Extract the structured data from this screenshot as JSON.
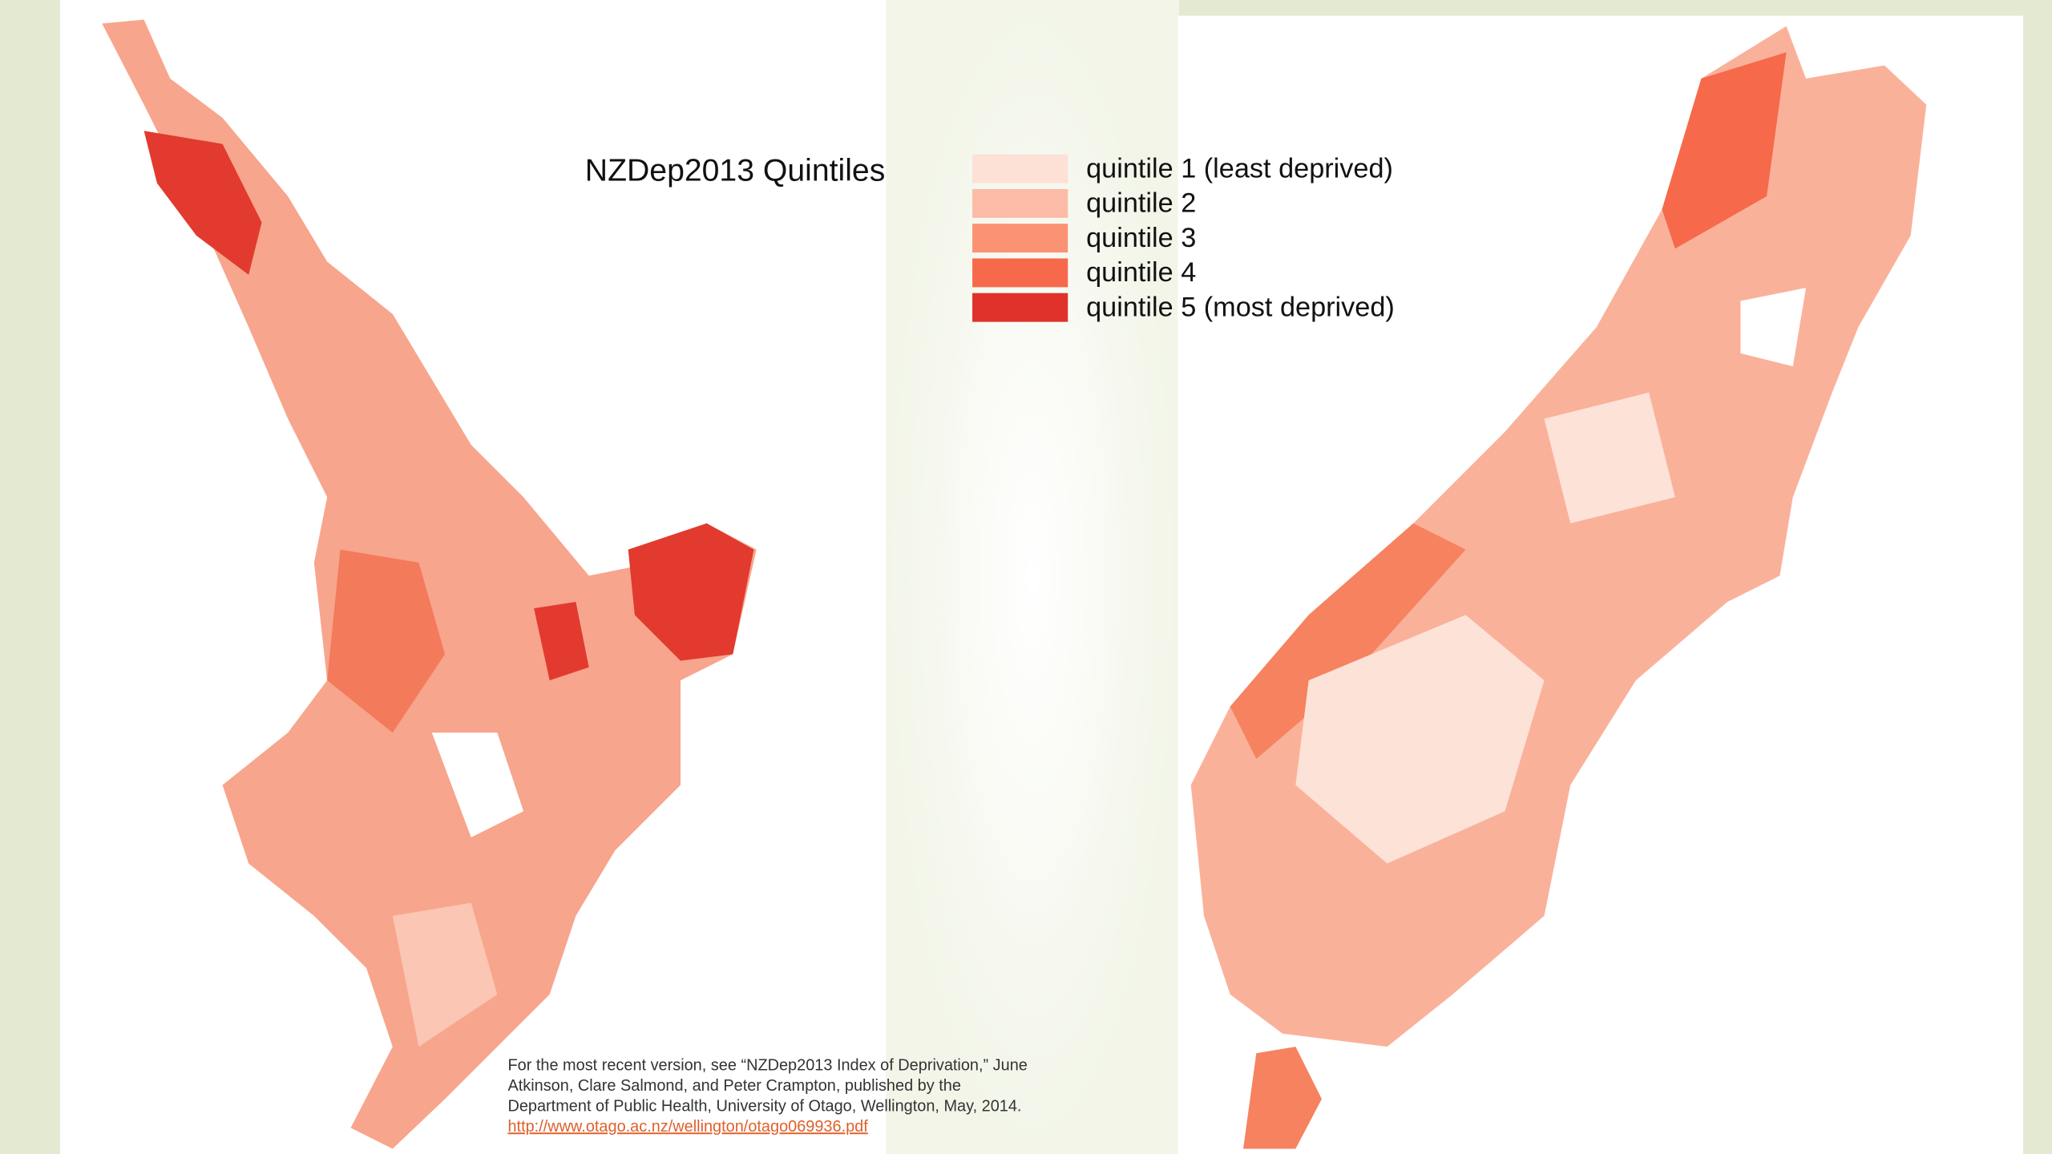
{
  "title": "NZDep2013 Quintiles",
  "legend": [
    {
      "label": "quintile 1 (least deprived)",
      "color": "#fde0d6"
    },
    {
      "label": "quintile 2",
      "color": "#fcbba6"
    },
    {
      "label": "quintile 3",
      "color": "#fb9274"
    },
    {
      "label": "quintile 4",
      "color": "#f6694a"
    },
    {
      "label": "quintile 5 (most deprived)",
      "color": "#e0322a"
    }
  ],
  "citation": {
    "lines": [
      "For the most recent version, see “NZDep2013 Index of Deprivation,” June",
      "Atkinson, Clare Salmond, and Peter Crampton, published by the",
      "Department of Public Health, University of Otago, Wellington, May, 2014."
    ],
    "link": "http://www.otago.ac.nz/wellington/otago069936.pdf"
  }
}
